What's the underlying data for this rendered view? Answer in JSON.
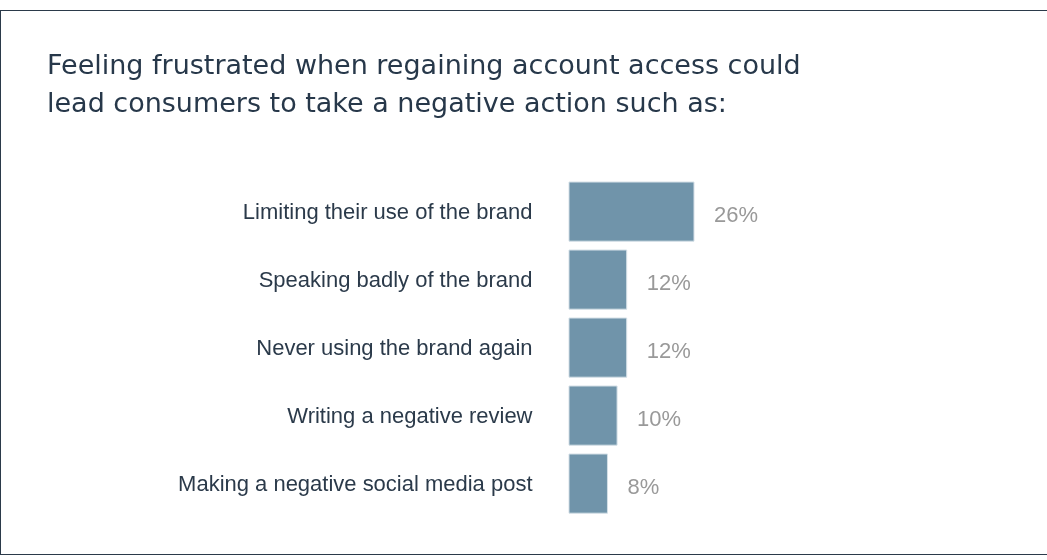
{
  "chart_data": {
    "type": "bar",
    "orientation": "horizontal",
    "title": "Feeling frustrated when regaining account access could lead consumers to take a negative action such as:",
    "categories": [
      "Limiting their use of the brand",
      "Speaking badly of the brand",
      "Never using the brand again",
      "Writing a negative review",
      "Making a negative social media post"
    ],
    "values": [
      26,
      12,
      12,
      10,
      8
    ],
    "value_labels": [
      "26%",
      "12%",
      "12%",
      "10%",
      "8%"
    ],
    "color": "#7094aa",
    "tick_labels": "y"
  }
}
